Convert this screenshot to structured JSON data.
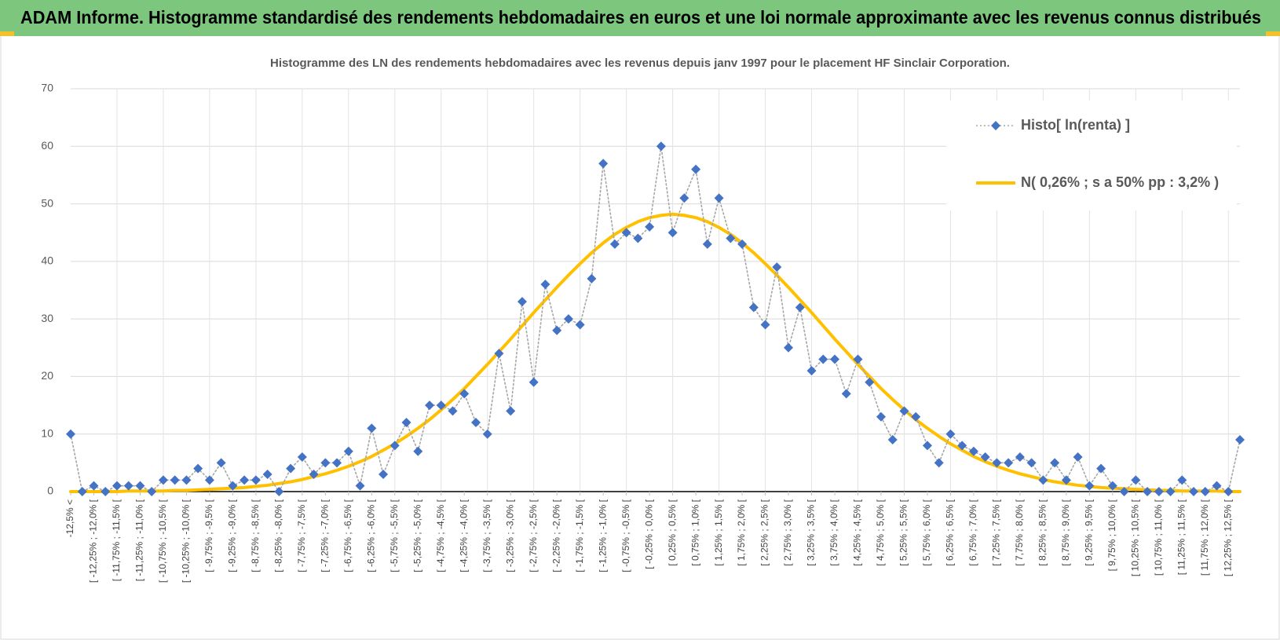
{
  "header": {
    "title": "ADAM Informe. Histogramme standardisé des rendements hebdomadaires en euros et une loi normale approximante avec les revenus connus distribués"
  },
  "chart_data": {
    "type": "line",
    "title": "Histogramme des LN des rendements hebdomadaires avec les revenus depuis janv 1997 pour le placement HF Sinclair Corporation.",
    "categories": [
      "-12,5% <",
      null,
      "[ -12,25% ; -12,0% [",
      null,
      "[ -11,75% ; -11,5% [",
      null,
      "[ -11,25% ; -11,0% [",
      null,
      "[ -10,75% ; -10,5% [",
      null,
      "[ -10,25% ; -10,0% [",
      null,
      "[ -9,75% ; -9,5% [",
      null,
      "[ -9,25% ; -9,0% [",
      null,
      "[ -8,75% ; -8,5% [",
      null,
      "[ -8,25% ; -8,0% [",
      null,
      "[ -7,75% ; -7,5% [",
      null,
      "[ -7,25% ; -7,0% [",
      null,
      "[ -6,75% ; -6,5% [",
      null,
      "[ -6,25% ; -6,0% [",
      null,
      "[ -5,75% ; -5,5% [",
      null,
      "[ -5,25% ; -5,0% [",
      null,
      "[ -4,75% ; -4,5% [",
      null,
      "[ -4,25% ; -4,0% [",
      null,
      "[ -3,75% ; -3,5% [",
      null,
      "[ -3,25% ; -3,0% [",
      null,
      "[ -2,75% ; -2,5% [",
      null,
      "[ -2,25% ; -2,0% [",
      null,
      "[ -1,75% ; -1,5% [",
      null,
      "[ -1,25% ; -1,0% [",
      null,
      "[ -0,75% ; -0,5% [",
      null,
      "[ -0,25% ; 0,0% [",
      null,
      "[ 0,25% ; 0,5% [",
      null,
      "[ 0,75% ; 1,0% [",
      null,
      "[ 1,25% ; 1,5% [",
      null,
      "[ 1,75% ; 2,0% [",
      null,
      "[ 2,25% ; 2,5% [",
      null,
      "[ 2,75% ; 3,0% [",
      null,
      "[ 3,25% ; 3,5% [",
      null,
      "[ 3,75% ; 4,0% [",
      null,
      "[ 4,25% ; 4,5% [",
      null,
      "[ 4,75% ; 5,0% [",
      null,
      "[ 5,25% ; 5,5% [",
      null,
      "[ 5,75% ; 6,0% [",
      null,
      "[ 6,25% ; 6,5% [",
      null,
      "[ 6,75% ; 7,0% [",
      null,
      "[ 7,25% ; 7,5% [",
      null,
      "[ 7,75% ; 8,0% [",
      null,
      "[ 8,25% ; 8,5% [",
      null,
      "[ 8,75% ; 9,0% [",
      null,
      "[ 9,25% ; 9,5% [",
      null,
      "[ 9,75% ; 10,0% [",
      null,
      "[ 10,25% ; 10,5% [",
      null,
      "[ 10,75% ; 11,0% [",
      null,
      "[ 11,25% ; 11,5% [",
      null,
      "[ 11,75% ; 12,0% [",
      null,
      "[ 12,25% ; 12,5% [",
      null
    ],
    "series": [
      {
        "name": "Histo[ ln(renta) ]",
        "color": "#4472c4",
        "line_color": "#a6a6a6",
        "marker": "diamond",
        "line_style": "dotted",
        "values": [
          10,
          0,
          1,
          0,
          1,
          1,
          1,
          0,
          2,
          2,
          2,
          4,
          2,
          5,
          1,
          2,
          2,
          3,
          0,
          4,
          6,
          3,
          5,
          5,
          7,
          1,
          11,
          3,
          8,
          12,
          7,
          15,
          15,
          14,
          17,
          12,
          10,
          24,
          14,
          33,
          19,
          36,
          28,
          30,
          29,
          37,
          57,
          43,
          45,
          44,
          46,
          60,
          45,
          51,
          56,
          43,
          51,
          44,
          43,
          32,
          29,
          39,
          25,
          32,
          21,
          23,
          23,
          17,
          23,
          19,
          13,
          9,
          14,
          13,
          8,
          5,
          10,
          8,
          7,
          6,
          5,
          5,
          6,
          5,
          2,
          5,
          2,
          6,
          1,
          4,
          1,
          0,
          2,
          0,
          0,
          0,
          2,
          0,
          0,
          1,
          0,
          9
        ]
      },
      {
        "name": "N( 0,26% ; s a 50% pp : 3,2% )",
        "color": "#ffc000",
        "line_style": "solid",
        "values": [
          0,
          0,
          0,
          0,
          0,
          0.1,
          0.1,
          0.1,
          0.1,
          0.2,
          0.2,
          0.3,
          0.4,
          0.5,
          0.6,
          0.7,
          0.9,
          1.1,
          1.4,
          1.7,
          2.1,
          2.6,
          3.1,
          3.7,
          4.4,
          5.2,
          6.1,
          7.2,
          8.3,
          9.6,
          11.0,
          12.5,
          14.2,
          16.0,
          17.9,
          20.0,
          22.1,
          24.3,
          26.5,
          28.8,
          31.1,
          33.3,
          35.5,
          37.6,
          39.6,
          41.5,
          43.2,
          44.7,
          45.9,
          46.9,
          47.6,
          48.0,
          48.2,
          48.0,
          47.6,
          46.9,
          45.9,
          44.7,
          43.2,
          41.5,
          39.6,
          37.6,
          35.5,
          33.3,
          31.1,
          28.8,
          26.5,
          24.3,
          22.1,
          20.0,
          17.9,
          16.0,
          14.2,
          12.5,
          11.0,
          9.6,
          8.3,
          7.2,
          6.1,
          5.2,
          4.4,
          3.7,
          3.1,
          2.6,
          2.1,
          1.7,
          1.4,
          1.1,
          0.9,
          0.7,
          0.6,
          0.5,
          0.4,
          0.3,
          0.2,
          0.2,
          0.1,
          0.1,
          0.1,
          0.1,
          0,
          0
        ]
      }
    ],
    "ylim": [
      0,
      70
    ],
    "yticks": [
      0,
      10,
      20,
      30,
      40,
      50,
      60,
      70
    ],
    "grid": true,
    "legend": "upper right"
  }
}
